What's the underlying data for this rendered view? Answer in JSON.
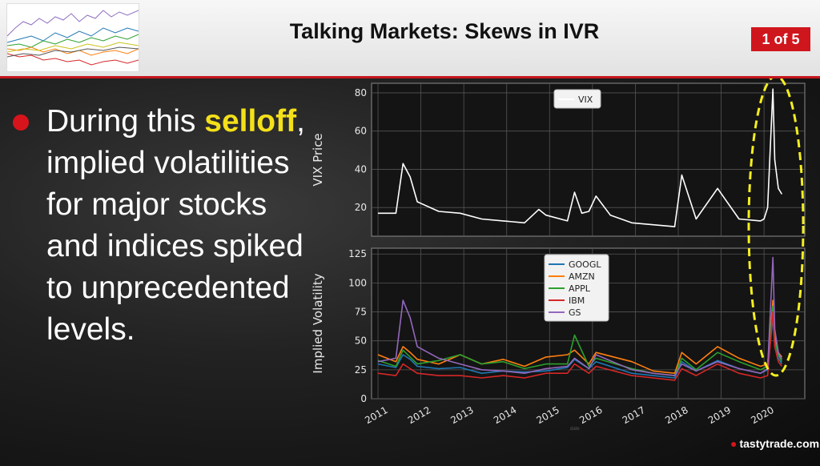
{
  "title": "Talking Markets: Skews in IVR",
  "page_badge": "1 of 5",
  "bullet": {
    "pre": "During this ",
    "highlight": "selloff",
    "post": ", implied volatilities for major stocks and indices spiked to unprecedented levels."
  },
  "brand": "tastytrade",
  "brand_suffix": ".com",
  "faint_label": "date",
  "colors": {
    "accent_red": "#d7141b",
    "highlight": "#f4e01a",
    "annotation": "#f4ee20"
  },
  "chart_data": [
    {
      "type": "line",
      "ylabel": "VIX Price",
      "ylim": [
        5,
        85
      ],
      "yticks": [
        20,
        40,
        60,
        80
      ],
      "grid": true,
      "legend": "top-center",
      "x": [
        "2011-01",
        "2011-06",
        "2011-08",
        "2011-10",
        "2011-12",
        "2012-06",
        "2012-12",
        "2013-06",
        "2013-12",
        "2014-06",
        "2014-10",
        "2014-12",
        "2015-06",
        "2015-08",
        "2015-10",
        "2015-12",
        "2016-02",
        "2016-06",
        "2016-12",
        "2017-06",
        "2017-12",
        "2018-02",
        "2018-06",
        "2018-12",
        "2019-06",
        "2019-12",
        "2020-01",
        "2020-02",
        "2020-03-16",
        "2020-04",
        "2020-05",
        "2020-06"
      ],
      "series": [
        {
          "name": "VIX",
          "color": "#ffffff",
          "values": [
            17,
            17,
            43,
            36,
            23,
            18,
            17,
            14,
            13,
            12,
            19,
            16,
            13,
            28,
            17,
            18,
            26,
            16,
            12,
            11,
            10,
            37,
            14,
            30,
            14,
            13,
            14,
            20,
            82,
            45,
            30,
            27
          ]
        }
      ]
    },
    {
      "type": "line",
      "ylabel": "Implied Volatility",
      "ylim": [
        0,
        130
      ],
      "yticks": [
        0,
        25,
        50,
        75,
        100,
        125
      ],
      "xticks": [
        "2011",
        "2012",
        "2013",
        "2014",
        "2015",
        "2016",
        "2017",
        "2018",
        "2019",
        "2020"
      ],
      "grid": true,
      "legend": "top-center",
      "x": [
        "2011-01",
        "2011-06",
        "2011-08",
        "2011-10",
        "2011-12",
        "2012-06",
        "2012-12",
        "2013-06",
        "2013-12",
        "2014-06",
        "2014-12",
        "2015-06",
        "2015-08",
        "2015-12",
        "2016-02",
        "2016-12",
        "2017-06",
        "2017-12",
        "2018-02",
        "2018-06",
        "2018-12",
        "2019-06",
        "2019-12",
        "2020-02",
        "2020-03-16",
        "2020-04",
        "2020-05",
        "2020-06"
      ],
      "series": [
        {
          "name": "GOOGL",
          "color": "#1f77b4",
          "values": [
            30,
            27,
            38,
            34,
            28,
            26,
            27,
            22,
            24,
            23,
            24,
            27,
            34,
            26,
            32,
            22,
            20,
            18,
            32,
            24,
            33,
            26,
            22,
            25,
            70,
            45,
            35,
            30
          ]
        },
        {
          "name": "AMZN",
          "color": "#ff7f0e",
          "values": [
            38,
            32,
            45,
            40,
            34,
            30,
            38,
            30,
            34,
            28,
            36,
            38,
            42,
            30,
            40,
            32,
            24,
            22,
            40,
            30,
            45,
            35,
            28,
            30,
            85,
            55,
            40,
            36
          ]
        },
        {
          "name": "APPL",
          "color": "#2ca02c",
          "values": [
            33,
            28,
            42,
            36,
            30,
            33,
            38,
            30,
            32,
            26,
            30,
            30,
            55,
            28,
            35,
            26,
            22,
            20,
            35,
            25,
            40,
            32,
            25,
            28,
            80,
            50,
            38,
            32
          ]
        },
        {
          "name": "IBM",
          "color": "#d62728",
          "values": [
            22,
            20,
            30,
            26,
            22,
            20,
            20,
            18,
            20,
            18,
            22,
            22,
            30,
            22,
            28,
            20,
            18,
            16,
            26,
            20,
            30,
            22,
            18,
            20,
            75,
            45,
            32,
            28
          ]
        },
        {
          "name": "GS",
          "color": "#9467bd",
          "values": [
            32,
            35,
            85,
            70,
            45,
            35,
            30,
            25,
            24,
            22,
            26,
            28,
            35,
            26,
            38,
            25,
            22,
            20,
            30,
            24,
            32,
            26,
            22,
            26,
            122,
            60,
            40,
            34
          ]
        }
      ]
    }
  ]
}
